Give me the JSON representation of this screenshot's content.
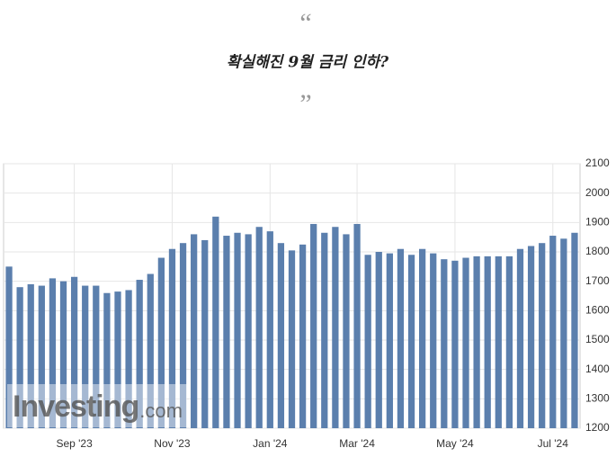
{
  "quote_open": "“",
  "quote_close": "”",
  "headline": "확실해진 9월 금리 인하?",
  "chart_data": {
    "type": "bar",
    "categories": [
      null,
      null,
      null,
      null,
      null,
      null,
      "Sep '23",
      null,
      null,
      null,
      null,
      null,
      null,
      null,
      null,
      "Nov '23",
      null,
      null,
      null,
      null,
      null,
      null,
      null,
      null,
      "Jan '24",
      null,
      null,
      null,
      null,
      null,
      null,
      null,
      "Mar '24",
      null,
      null,
      null,
      null,
      null,
      null,
      null,
      null,
      "May '24",
      null,
      null,
      null,
      null,
      null,
      null,
      null,
      null,
      "Jul '24",
      null,
      null
    ],
    "values": [
      1750,
      1680,
      1690,
      1685,
      1710,
      1700,
      1715,
      1685,
      1685,
      1660,
      1665,
      1670,
      1705,
      1725,
      1780,
      1810,
      1830,
      1860,
      1840,
      1920,
      1855,
      1865,
      1860,
      1885,
      1870,
      1830,
      1805,
      1825,
      1895,
      1865,
      1885,
      1860,
      1895,
      1790,
      1800,
      1795,
      1810,
      1790,
      1810,
      1795,
      1775,
      1770,
      1780,
      1785,
      1785,
      1785,
      1785,
      1810,
      1820,
      1830,
      1855,
      1845,
      1865
    ],
    "color": "#5b7fad",
    "ylim": [
      1200,
      2100
    ],
    "yticks": [
      1200,
      1300,
      1400,
      1500,
      1600,
      1700,
      1800,
      1900,
      2000,
      2100
    ],
    "grid": true,
    "watermark": "Investing",
    "watermark_suffix": ".com"
  }
}
